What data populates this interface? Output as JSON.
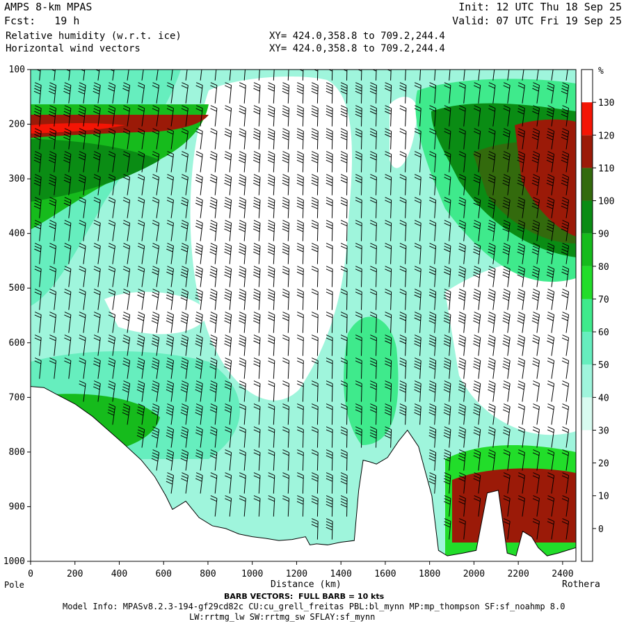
{
  "header": {
    "model": "AMPS 8-km MPAS",
    "fcst": "Fcst:   19 h",
    "field1": "Relative humidity (w.r.t. ice)",
    "field2": "Horizontal wind vectors",
    "xy1": "XY= 424.0,358.8 to 709.2,244.4",
    "xy2": "XY= 424.0,358.8 to 709.2,244.4",
    "init": "Init: 12 UTC Thu 18 Sep 25",
    "valid": "Valid: 07 UTC Fri 19 Sep 25"
  },
  "footer": {
    "barb_note": "BARB VECTORS:  FULL BARB = 10 kts",
    "model_info": "Model Info: MPASv8.2.3-194-gf29cd82c CU:cu_grell_freitas PBL:bl_mynn MP:mp_thompson SF:sf_noahmp 8.0",
    "model_info2": "LW:rrtmg_lw SW:rrtmg_sw SFLAY:sf_mynn"
  },
  "chart_data": {
    "type": "heatmap",
    "xlabel": "Distance (km)",
    "x_endpoints": {
      "left": "Pole",
      "right": "Rothera"
    },
    "xlim": [
      0,
      2460
    ],
    "ylim": [
      1000,
      100
    ],
    "x_ticks": [
      0,
      200,
      400,
      600,
      800,
      1000,
      1200,
      1400,
      1600,
      1800,
      2000,
      2200,
      2400
    ],
    "y_ticks": [
      100,
      200,
      300,
      400,
      500,
      600,
      700,
      800,
      900,
      1000
    ],
    "colorbar": {
      "unit": "%",
      "levels": [
        -10,
        0,
        10,
        20,
        30,
        40,
        50,
        60,
        70,
        80,
        90,
        100,
        110,
        120,
        130,
        140
      ],
      "tick_labels": [
        0,
        10,
        20,
        30,
        40,
        50,
        60,
        70,
        80,
        90,
        100,
        110,
        120,
        130
      ],
      "colors": [
        "#ffffff",
        "#ffffff",
        "#ffffff",
        "#ffffff",
        "#d8fbf0",
        "#9ff5dc",
        "#66eebe",
        "#3fea8c",
        "#22dd2a",
        "#16bb1c",
        "#0a8c14",
        "#336a0d",
        "#9b1a08",
        "#f41505"
      ]
    },
    "terrain_surface_hPa": {
      "x": [
        0,
        60,
        120,
        200,
        280,
        350,
        420,
        500,
        560,
        610,
        640,
        700,
        760,
        820,
        880,
        940,
        1000,
        1060,
        1120,
        1180,
        1240,
        1260,
        1290,
        1340,
        1400,
        1460,
        1480,
        1500,
        1530,
        1560,
        1610,
        1660,
        1700,
        1750,
        1810,
        1840,
        1880,
        1950,
        2010,
        2060,
        2110,
        2150,
        2190,
        2220,
        2260,
        2290,
        2330,
        2380,
        2420,
        2460
      ],
      "p": [
        680,
        682,
        695,
        712,
        735,
        760,
        785,
        815,
        845,
        880,
        905,
        890,
        920,
        935,
        940,
        950,
        955,
        958,
        962,
        960,
        955,
        970,
        968,
        970,
        965,
        962,
        870,
        815,
        818,
        822,
        810,
        780,
        760,
        790,
        880,
        980,
        990,
        985,
        980,
        875,
        870,
        985,
        990,
        945,
        955,
        975,
        990,
        985,
        980,
        975
      ]
    }
  }
}
